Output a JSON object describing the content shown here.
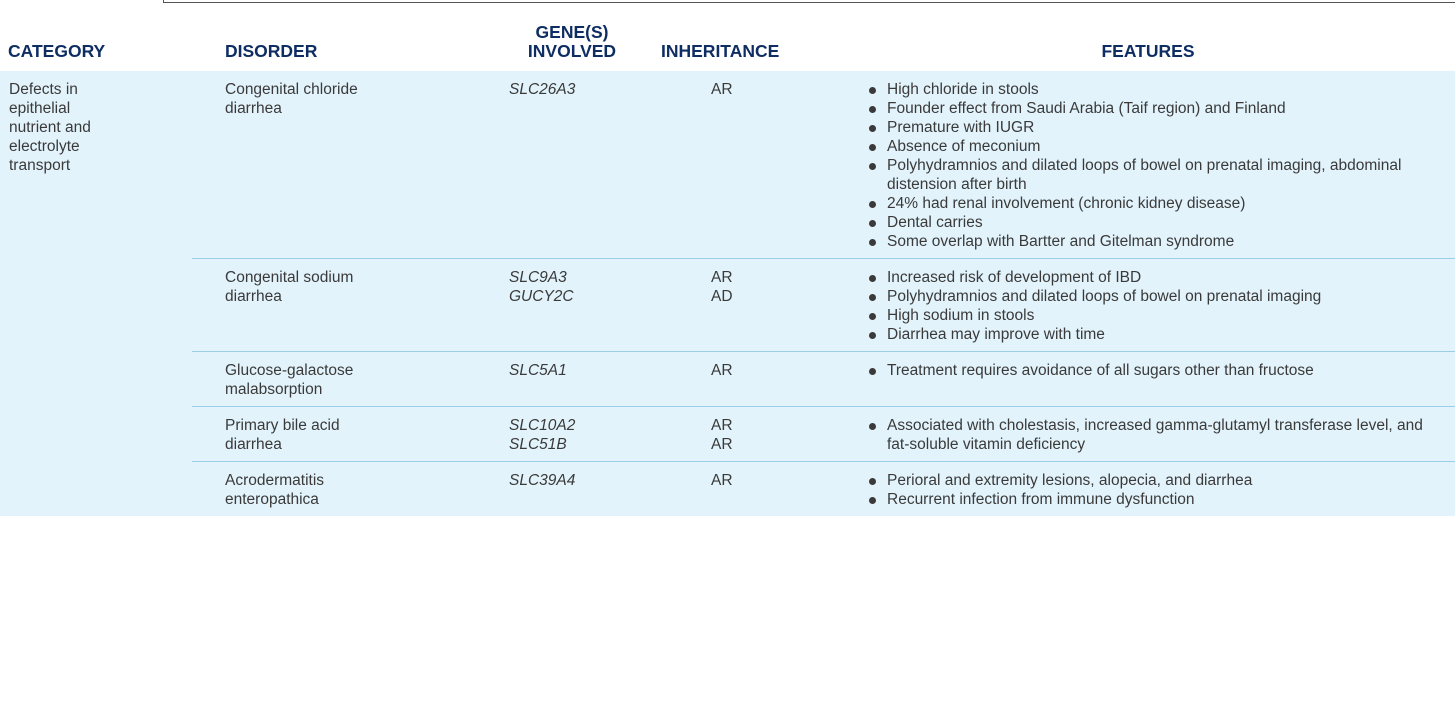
{
  "headers": {
    "category": "CATEGORY",
    "disorder": "DISORDER",
    "genes": "GENE(S)\nINVOLVED",
    "inheritance": "INHERITANCE",
    "features": "FEATURES"
  },
  "category": "Defects in\nepithelial\nnutrient and\nelectrolyte\ntransport",
  "rows": [
    {
      "disorder": "Congenital chloride\n  diarrhea",
      "genes": [
        "SLC26A3"
      ],
      "inheritance": [
        "AR"
      ],
      "features": [
        "High chloride in stools",
        "Founder effect from Saudi Arabia (Taif region) and Finland",
        "Premature with IUGR",
        "Absence of meconium",
        "Polyhydramnios and dilated loops of bowel on prenatal imaging, abdominal distension after birth",
        "24% had renal involvement (chronic kidney disease)",
        "Dental carries",
        "Some overlap with Bartter and Gitelman syndrome"
      ]
    },
    {
      "disorder": "Congenital sodium\n  diarrhea",
      "genes": [
        "SLC9A3",
        "GUCY2C"
      ],
      "inheritance": [
        "AR",
        "AD"
      ],
      "features": [
        "Increased risk of development of IBD",
        "Polyhydramnios and dilated loops of bowel on prenatal imaging",
        "High sodium in stools",
        "Diarrhea may improve with time"
      ]
    },
    {
      "disorder": "Glucose-galactose\n  malabsorption",
      "genes": [
        "SLC5A1"
      ],
      "inheritance": [
        "AR"
      ],
      "features": [
        "Treatment requires avoidance of all sugars other than fructose"
      ]
    },
    {
      "disorder": "Primary bile acid\n  diarrhea",
      "genes": [
        "SLC10A2",
        "SLC51B"
      ],
      "inheritance": [
        "AR",
        "AR"
      ],
      "features": [
        "Associated with cholestasis, increased gamma-glutamyl transferase level, and fat-soluble vitamin deficiency"
      ]
    },
    {
      "disorder": "Acrodermatitis\n  enteropathica",
      "genes": [
        "SLC39A4"
      ],
      "inheritance": [
        "AR"
      ],
      "features": [
        "Perioral and extremity lesions, alopecia, and diarrhea",
        "Recurrent infection from immune dysfunction"
      ]
    }
  ]
}
